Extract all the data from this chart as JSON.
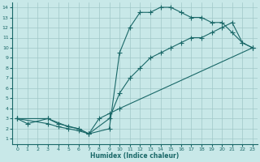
{
  "title": "",
  "xlabel": "Humidex (Indice chaleur)",
  "bg_color": "#c8e8e8",
  "grid_color": "#a0c8c8",
  "line_color": "#1a6868",
  "xlim": [
    -0.5,
    23.5
  ],
  "ylim": [
    0.5,
    14.5
  ],
  "xticks": [
    0,
    1,
    2,
    3,
    4,
    5,
    6,
    7,
    8,
    9,
    10,
    11,
    12,
    13,
    14,
    15,
    16,
    17,
    18,
    19,
    20,
    21,
    22,
    23
  ],
  "yticks": [
    1,
    2,
    3,
    4,
    5,
    6,
    7,
    8,
    9,
    10,
    11,
    12,
    13,
    14
  ],
  "line_upper": {
    "x": [
      0,
      1,
      3,
      5,
      6,
      7,
      9,
      10,
      11,
      12,
      13,
      14,
      15,
      16,
      17,
      18,
      19,
      20,
      21,
      22,
      23
    ],
    "y": [
      3,
      2.5,
      3,
      2.2,
      2,
      1.5,
      2,
      9.5,
      12,
      13.5,
      13.5,
      14,
      14,
      13.5,
      13,
      13,
      12.5,
      12.5,
      11.5,
      10.5,
      10
    ]
  },
  "line_middle": {
    "x": [
      0,
      3,
      4,
      6,
      7,
      9,
      10,
      11,
      12,
      13,
      14,
      15,
      16,
      17,
      18,
      19,
      20,
      21,
      22,
      23
    ],
    "y": [
      3,
      3,
      2.5,
      2,
      1.5,
      3,
      5.5,
      7,
      8,
      9,
      9.5,
      10,
      10.5,
      11,
      11,
      11.5,
      12,
      12.5,
      10.5,
      10
    ]
  },
  "line_lower": {
    "x": [
      0,
      3,
      4,
      5,
      6,
      7,
      8,
      9,
      10,
      23
    ],
    "y": [
      3,
      2.5,
      2.2,
      2,
      1.8,
      1.5,
      3,
      3.5,
      4,
      10
    ]
  }
}
